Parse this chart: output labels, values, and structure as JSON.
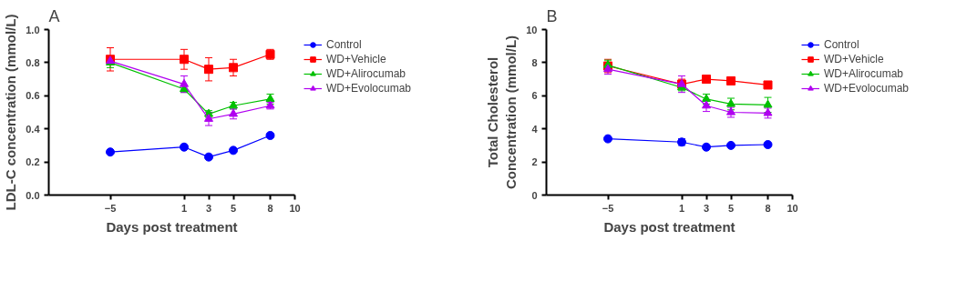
{
  "chart_data": [
    {
      "type": "line",
      "annotations": [
        "A"
      ],
      "xlabel": "Days post treatment",
      "ylabel": "LDL-C concentration (mmol/L)",
      "x": [
        -5,
        1,
        3,
        5,
        8
      ],
      "xlim": [
        -10,
        10
      ],
      "xticks": [
        -5,
        1,
        3,
        5,
        8,
        10
      ],
      "ylim": [
        0,
        1.0
      ],
      "yticks": [
        {
          "value": 0,
          "label": "0.0"
        },
        0.2,
        0.4,
        0.6,
        0.8,
        {
          "value": 1.0,
          "label": "1.0"
        }
      ],
      "grid": false,
      "legend": "right",
      "line_style": "solid",
      "series": [
        {
          "name": "Control",
          "color": "#0000ff",
          "marker": "circle",
          "values": [
            0.26,
            0.29,
            0.23,
            0.27,
            0.36
          ],
          "errors": [
            0.005,
            0.01,
            0.01,
            0.01,
            0.01
          ]
        },
        {
          "name": "WD+Vehicle",
          "color": "#ff0000",
          "marker": "square",
          "values": [
            0.82,
            0.82,
            0.76,
            0.77,
            0.85
          ],
          "errors": [
            0.07,
            0.06,
            0.07,
            0.05,
            0.03
          ]
        },
        {
          "name": "WD+Alirocumab",
          "color": "#00c000",
          "marker": "triangle",
          "values": [
            0.8,
            0.64,
            0.49,
            0.54,
            0.58
          ],
          "errors": [
            0.03,
            0.02,
            0.02,
            0.02,
            0.03
          ]
        },
        {
          "name": "WD+Evolocumab",
          "color": "#b000f0",
          "marker": "triangle",
          "values": [
            0.81,
            0.67,
            0.46,
            0.49,
            0.54
          ],
          "errors": [
            0.02,
            0.05,
            0.04,
            0.03,
            0.02
          ]
        }
      ]
    },
    {
      "type": "line",
      "annotations": [
        "B"
      ],
      "xlabel": "Days post treatment",
      "ylabel": "Total Cholesterol\nConcentration (mmol/L)",
      "x": [
        -5,
        1,
        3,
        5,
        8
      ],
      "xlim": [
        -10,
        10
      ],
      "xticks": [
        -5,
        1,
        3,
        5,
        8,
        10
      ],
      "ylim": [
        0,
        10
      ],
      "yticks": [
        0,
        2,
        4,
        6,
        8,
        10
      ],
      "grid": false,
      "legend": "right",
      "line_style": "solid",
      "series": [
        {
          "name": "Control",
          "color": "#0000ff",
          "marker": "circle",
          "values": [
            3.4,
            3.2,
            2.9,
            3.0,
            3.05
          ],
          "errors": [
            0.05,
            0.2,
            0.05,
            0.05,
            0.05
          ]
        },
        {
          "name": "WD+Vehicle",
          "color": "#ff0000",
          "marker": "square",
          "values": [
            7.8,
            6.7,
            7.0,
            6.9,
            6.65
          ],
          "errors": [
            0.4,
            0.3,
            0.1,
            0.1,
            0.1
          ]
        },
        {
          "name": "WD+Alirocumab",
          "color": "#00c000",
          "marker": "triangle",
          "values": [
            7.85,
            6.5,
            5.8,
            5.5,
            5.45
          ],
          "errors": [
            0.3,
            0.2,
            0.3,
            0.35,
            0.45
          ]
        },
        {
          "name": "WD+Evolocumab",
          "color": "#b000f0",
          "marker": "triangle",
          "values": [
            7.6,
            6.7,
            5.4,
            5.0,
            4.95
          ],
          "errors": [
            0.3,
            0.5,
            0.35,
            0.3,
            0.3
          ]
        }
      ]
    }
  ]
}
